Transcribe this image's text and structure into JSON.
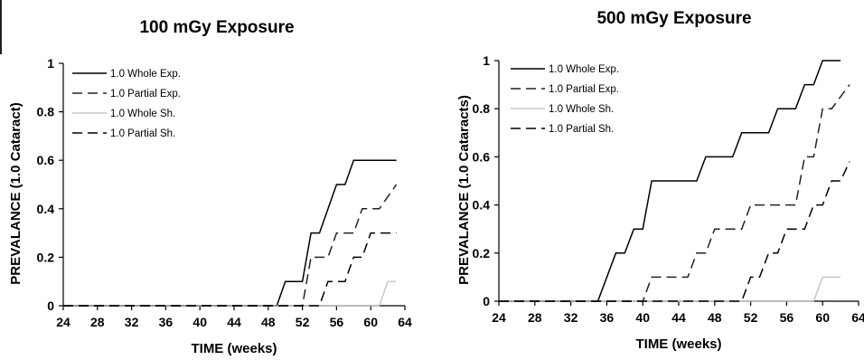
{
  "chart_data": [
    {
      "type": "line",
      "title": "100 mGy Exposure",
      "xlabel": "TIME (weeks)",
      "ylabel": "PREVALANCE (1.0 Cataract)",
      "xlim": [
        24,
        64
      ],
      "ylim": [
        0,
        1
      ],
      "x_ticks": [
        "24",
        "28",
        "32",
        "36",
        "40",
        "44",
        "48",
        "52",
        "56",
        "60",
        "64"
      ],
      "y_ticks": [
        "0",
        "0.2",
        "0.4",
        "0.6",
        "0.8",
        "1"
      ],
      "grid": false,
      "legend_position": "top-left",
      "series": [
        {
          "name": "1.0 Whole Exp.",
          "color": "#000000",
          "dash": "solid",
          "points": [
            [
              24,
              0
            ],
            [
              49,
              0
            ],
            [
              50,
              0.1
            ],
            [
              52,
              0.1
            ],
            [
              53,
              0.3
            ],
            [
              54,
              0.3
            ],
            [
              56,
              0.5
            ],
            [
              57,
              0.5
            ],
            [
              58,
              0.6
            ],
            [
              63,
              0.6
            ]
          ]
        },
        {
          "name": "1.0 Partial Exp.",
          "color": "#222222",
          "dash": "long",
          "points": [
            [
              24,
              0
            ],
            [
              52,
              0
            ],
            [
              53,
              0.2
            ],
            [
              55,
              0.2
            ],
            [
              56,
              0.3
            ],
            [
              58,
              0.3
            ],
            [
              59,
              0.4
            ],
            [
              61,
              0.4
            ],
            [
              63,
              0.5
            ]
          ]
        },
        {
          "name": "1.0 Whole Sh.",
          "color": "#bbbbbb",
          "dash": "solid",
          "points": [
            [
              24,
              0
            ],
            [
              61,
              0
            ],
            [
              62,
              0.1
            ],
            [
              63,
              0.1
            ]
          ]
        },
        {
          "name": "1.0 Partial Sh.",
          "color": "#000000",
          "dash": "long",
          "points": [
            [
              24,
              0
            ],
            [
              54,
              0
            ],
            [
              55,
              0.1
            ],
            [
              57,
              0.1
            ],
            [
              58,
              0.2
            ],
            [
              59,
              0.2
            ],
            [
              60,
              0.3
            ],
            [
              63,
              0.3
            ]
          ]
        }
      ]
    },
    {
      "type": "line",
      "title": "500 mGy Exposure",
      "xlabel": "TIME (weeks)",
      "ylabel": "PREVALANCE (1.0 Cataracts)",
      "xlim": [
        24,
        64
      ],
      "ylim": [
        0,
        1
      ],
      "x_ticks": [
        "24",
        "28",
        "32",
        "36",
        "40",
        "44",
        "48",
        "52",
        "56",
        "60",
        "64"
      ],
      "y_ticks": [
        "0",
        "0.2",
        "0.4",
        "0.6",
        "0.8",
        "1"
      ],
      "grid": false,
      "legend_position": "top-left",
      "series": [
        {
          "name": "1.0 Whole Exp.",
          "color": "#000000",
          "dash": "solid",
          "points": [
            [
              24,
              0
            ],
            [
              35,
              0
            ],
            [
              37,
              0.2
            ],
            [
              38,
              0.2
            ],
            [
              39,
              0.3
            ],
            [
              40,
              0.3
            ],
            [
              41,
              0.5
            ],
            [
              46,
              0.5
            ],
            [
              47,
              0.6
            ],
            [
              50,
              0.6
            ],
            [
              51,
              0.7
            ],
            [
              54,
              0.7
            ],
            [
              55,
              0.8
            ],
            [
              57,
              0.8
            ],
            [
              58,
              0.9
            ],
            [
              59,
              0.9
            ],
            [
              60,
              1
            ],
            [
              62,
              1
            ]
          ]
        },
        {
          "name": "1.0 Partial Exp.",
          "color": "#222222",
          "dash": "long",
          "points": [
            [
              24,
              0
            ],
            [
              40,
              0
            ],
            [
              41,
              0.1
            ],
            [
              45,
              0.1
            ],
            [
              46,
              0.2
            ],
            [
              47,
              0.2
            ],
            [
              48,
              0.3
            ],
            [
              51,
              0.3
            ],
            [
              52,
              0.4
            ],
            [
              57,
              0.4
            ],
            [
              58,
              0.6
            ],
            [
              59,
              0.6
            ],
            [
              60,
              0.8
            ],
            [
              61,
              0.8
            ],
            [
              63,
              0.9
            ]
          ]
        },
        {
          "name": "1.0 Whole Sh.",
          "color": "#bbbbbb",
          "dash": "solid",
          "points": [
            [
              24,
              0
            ],
            [
              59,
              0
            ],
            [
              60,
              0.1
            ],
            [
              62,
              0.1
            ]
          ]
        },
        {
          "name": "1.0 Partial Sh.",
          "color": "#000000",
          "dash": "long",
          "points": [
            [
              24,
              0
            ],
            [
              51,
              0
            ],
            [
              52,
              0.1
            ],
            [
              53,
              0.1
            ],
            [
              54,
              0.2
            ],
            [
              55,
              0.2
            ],
            [
              56,
              0.3
            ],
            [
              58,
              0.3
            ],
            [
              59,
              0.4
            ],
            [
              60,
              0.4
            ],
            [
              61,
              0.5
            ],
            [
              62,
              0.5
            ],
            [
              63,
              0.58
            ]
          ]
        }
      ]
    }
  ]
}
